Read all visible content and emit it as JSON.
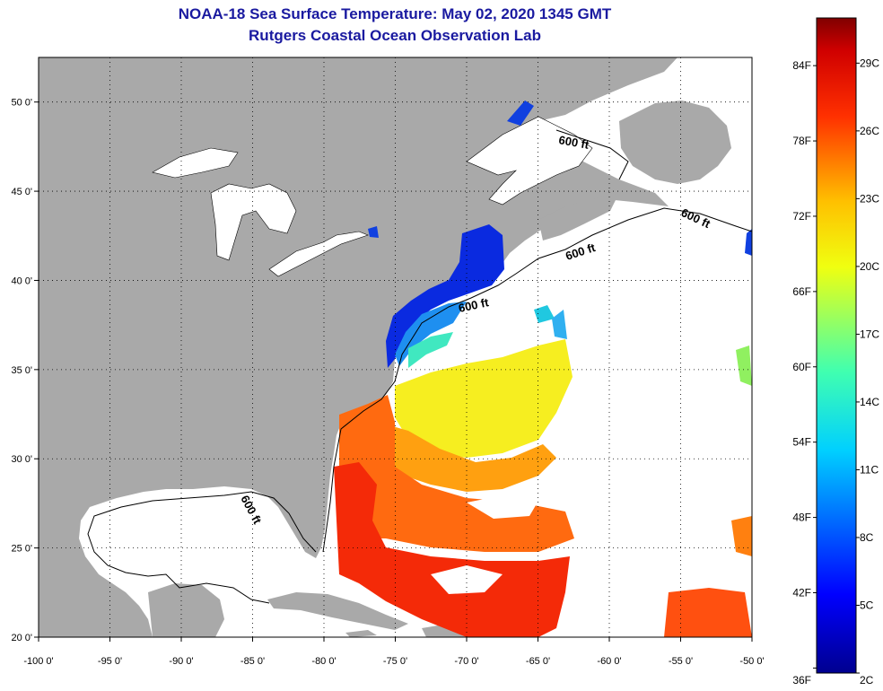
{
  "header": {
    "title_line1": "NOAA-18 Sea Surface Temperature:  May 02, 2020 1345 GMT",
    "title_line2": "Rutgers Coastal Ocean Observation Lab"
  },
  "map": {
    "lon_range": [
      -100,
      -50
    ],
    "lat_range": [
      20,
      52.5
    ],
    "lon_ticks": [
      "-100 0'",
      "-95 0'",
      "-90 0'",
      "-85 0'",
      "-80 0'",
      "-75 0'",
      "-70 0'",
      "-65 0'",
      "-60 0'",
      "-55 0'",
      "-50 0'"
    ],
    "lat_ticks": [
      "50 0'",
      "45 0'",
      "40 0'",
      "35 0'",
      "30 0'",
      "25 0'",
      "20 0'"
    ],
    "contour_label": "600 ft",
    "land_color": "#a9a9a9",
    "cloud_color": "#ffffff"
  },
  "colorbar": {
    "fahrenheit_labels": [
      "84F",
      "78F",
      "72F",
      "66F",
      "60F",
      "54F",
      "48F",
      "42F",
      "36F"
    ],
    "celsius_labels": [
      "29C",
      "26C",
      "23C",
      "20C",
      "17C",
      "14C",
      "11C",
      "8C",
      "5C",
      "2C"
    ],
    "min_c": 2,
    "max_c": 31
  }
}
